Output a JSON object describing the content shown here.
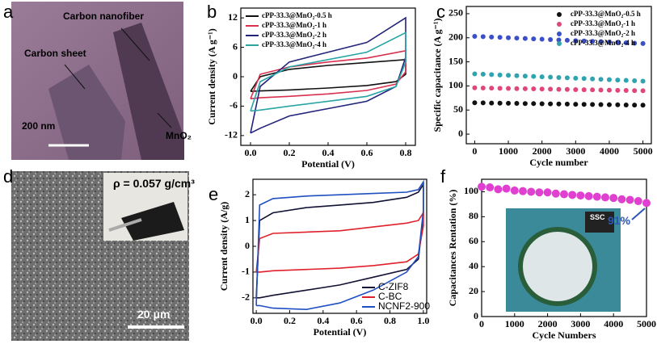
{
  "images": [
    {
      "panel": "a",
      "labels": [
        "Carbon nanofiber",
        "Carbon sheet",
        "MnO₂"
      ],
      "scale_bar": "200 nm"
    },
    {
      "panel": "d",
      "density": "ρ = 0.057 g/cm³",
      "scale_bar": "20 μm"
    }
  ],
  "chart_data": [
    {
      "type": "line",
      "panel": "b",
      "xlabel": "Potential (V)",
      "ylabel": "Current density (A g⁻¹)",
      "xlim": [
        -0.05,
        0.85
      ],
      "xticks": [
        {
          "value": 0,
          "label": "0.0"
        },
        0.2,
        0.4,
        0.6,
        0.8
      ],
      "ylim": [
        -14,
        14
      ],
      "yticks": [
        -12,
        -6,
        0,
        6,
        12
      ],
      "legend": "upper left",
      "series": [
        {
          "name": "cPP-33.3@MnO₂-0.5 h",
          "color": "#111111",
          "x": [
            0,
            0.05,
            0.2,
            0.4,
            0.6,
            0.8,
            0.8,
            0.75,
            0.6,
            0.4,
            0.2,
            0.05,
            0
          ],
          "values": [
            -3,
            0,
            1.5,
            2.3,
            2.9,
            3.5,
            0.5,
            -1,
            -1.8,
            -2.3,
            -2.7,
            -2.9,
            -3
          ]
        },
        {
          "name": "cPP-33.3@MnO₂-1 h",
          "color": "#d9304f",
          "x": [
            0,
            0.05,
            0.2,
            0.4,
            0.6,
            0.8,
            0.8,
            0.75,
            0.6,
            0.4,
            0.2,
            0.05,
            0
          ],
          "values": [
            -4.5,
            0.5,
            2,
            3,
            3.8,
            5.3,
            1,
            -1.5,
            -2.8,
            -3.5,
            -4,
            -4.3,
            -4.5
          ]
        },
        {
          "name": "cPP-33.3@MnO₂-2 h",
          "color": "#23237a",
          "x": [
            0,
            0.05,
            0.2,
            0.4,
            0.6,
            0.8,
            0.8,
            0.75,
            0.6,
            0.4,
            0.2,
            0.05,
            0
          ],
          "values": [
            -11.5,
            -2,
            3,
            5,
            7,
            12,
            4,
            -2,
            -5,
            -6.5,
            -8,
            -10.5,
            -11.5
          ]
        },
        {
          "name": "cPP-33.3@MnO₂-4 h",
          "color": "#2aa5a5",
          "x": [
            0,
            0.05,
            0.2,
            0.4,
            0.6,
            0.8,
            0.8,
            0.75,
            0.6,
            0.4,
            0.2,
            0.05,
            0
          ],
          "values": [
            -7,
            -1,
            2,
            3.5,
            5,
            9,
            3,
            -2,
            -4,
            -5,
            -6,
            -6.8,
            -7
          ]
        }
      ]
    },
    {
      "type": "scatter",
      "panel": "c",
      "xlabel": "Cycle number",
      "ylabel": "Specific capacitance (A g⁻¹)",
      "xlim": [
        -250,
        5250
      ],
      "xticks": [
        0,
        1000,
        2000,
        3000,
        4000,
        5000
      ],
      "ylim": [
        -20,
        265
      ],
      "yticks": [
        0,
        50,
        100,
        150,
        200,
        250
      ],
      "legend": "upper right",
      "x": [
        0,
        250,
        500,
        750,
        1000,
        1250,
        1500,
        1750,
        2000,
        2250,
        2500,
        2750,
        3000,
        3250,
        3500,
        3750,
        4000,
        4250,
        4500,
        4750,
        5000
      ],
      "series": [
        {
          "name": "cPP-33.3@MnO₂-0.5 h",
          "color": "#111111",
          "values": [
            65,
            64.8,
            64.5,
            64.3,
            64,
            63.8,
            63.5,
            63.3,
            63,
            62.8,
            62.5,
            62.3,
            62,
            61.8,
            61.5,
            61.3,
            61,
            60.8,
            60.5,
            60.3,
            60
          ]
        },
        {
          "name": "cPP-33.3@MnO₂-1 h",
          "color": "#e0457b",
          "values": [
            96,
            95.7,
            95.4,
            95.1,
            94.8,
            94.5,
            94.2,
            93.9,
            93.6,
            93.3,
            93,
            92.7,
            92.4,
            92.1,
            91.8,
            91.5,
            91.2,
            90.9,
            90.6,
            90.3,
            90
          ]
        },
        {
          "name": "cPP-33.3@MnO₂-2 h",
          "color": "#3a4fc8",
          "values": [
            203,
            202.3,
            201.5,
            200.8,
            200,
            199.3,
            198.5,
            197.8,
            197,
            196.3,
            195.5,
            194.8,
            194,
            193.3,
            192.5,
            191.8,
            191,
            190.3,
            189.5,
            188.8,
            188
          ]
        },
        {
          "name": "cPP-33.3@MnO₂-4 h",
          "color": "#2fa4b0",
          "values": [
            125,
            124.3,
            123.5,
            122.8,
            122,
            121.3,
            120.5,
            119.8,
            119,
            118.3,
            117.5,
            116.8,
            116,
            115.3,
            114.5,
            113.8,
            113,
            112.3,
            111.5,
            110.8,
            110
          ]
        }
      ]
    },
    {
      "type": "line",
      "panel": "e",
      "xlabel": "Potential (V)",
      "ylabel": "Current density (A/g)",
      "xlim": [
        -0.02,
        1.02
      ],
      "xticks": [
        {
          "value": 0,
          "label": "0.0"
        },
        0.2,
        0.4,
        0.6,
        0.8,
        {
          "value": 1,
          "label": "1.0"
        }
      ],
      "ylim": [
        -2.6,
        2.6
      ],
      "yticks": [
        -2,
        -1,
        0,
        1,
        2
      ],
      "legend": "lower right",
      "series": [
        {
          "name": "C-ZIF8",
          "color": "#111133",
          "x": [
            0,
            0.02,
            0.1,
            0.3,
            0.5,
            0.7,
            0.9,
            0.97,
            1,
            1,
            0.97,
            0.9,
            0.7,
            0.5,
            0.3,
            0.1,
            0.02,
            0
          ],
          "values": [
            -2,
            1,
            1.3,
            1.5,
            1.6,
            1.7,
            1.9,
            2.1,
            2.4,
            1.2,
            -0.5,
            -0.9,
            -1.2,
            -1.5,
            -1.7,
            -1.9,
            -2,
            -2
          ]
        },
        {
          "name": "C-BC",
          "color": "#e0202a",
          "x": [
            0,
            0.02,
            0.1,
            0.3,
            0.5,
            0.7,
            0.9,
            0.97,
            1,
            1,
            0.97,
            0.9,
            0.7,
            0.5,
            0.3,
            0.1,
            0.02,
            0
          ],
          "values": [
            -1,
            0.3,
            0.5,
            0.55,
            0.6,
            0.75,
            0.9,
            1,
            1.3,
            0.8,
            -0.3,
            -0.6,
            -0.75,
            -0.85,
            -0.9,
            -0.95,
            -1,
            -1
          ]
        },
        {
          "name": "NCNF2-900",
          "color": "#1f4fc0",
          "x": [
            0,
            0.02,
            0.1,
            0.3,
            0.5,
            0.7,
            0.9,
            0.97,
            1,
            1,
            0.97,
            0.9,
            0.7,
            0.5,
            0.3,
            0.1,
            0.02,
            0
          ],
          "values": [
            -2.3,
            1.6,
            1.85,
            1.95,
            2,
            2.05,
            2.1,
            2.2,
            2.5,
            1.4,
            -0.4,
            -1,
            -1.7,
            -2.2,
            -2.45,
            -2.4,
            -2.3,
            -2.3
          ]
        }
      ]
    },
    {
      "type": "scatter",
      "panel": "f",
      "xlabel": "Cycle Numbers",
      "ylabel": "Capacitances Rentation (%)",
      "xlim": [
        0,
        5000
      ],
      "xticks": [
        0,
        1000,
        2000,
        3000,
        4000,
        5000
      ],
      "ylim": [
        0,
        110
      ],
      "yticks": [
        0,
        20,
        40,
        60,
        80,
        100
      ],
      "annotations": [
        "91%",
        "SSC"
      ],
      "x": [
        0,
        250,
        500,
        750,
        1000,
        1250,
        1500,
        1750,
        2000,
        2250,
        2500,
        2750,
        3000,
        3250,
        3500,
        3750,
        4000,
        4250,
        4500,
        4750,
        5000
      ],
      "series": [
        {
          "color": "#e040d0",
          "values": [
            104,
            103.5,
            102,
            102.5,
            101,
            100.5,
            100,
            99.5,
            99.5,
            98.5,
            98,
            97.5,
            97,
            96.5,
            96,
            95.5,
            95,
            94,
            93.5,
            92.5,
            91
          ]
        }
      ]
    }
  ]
}
